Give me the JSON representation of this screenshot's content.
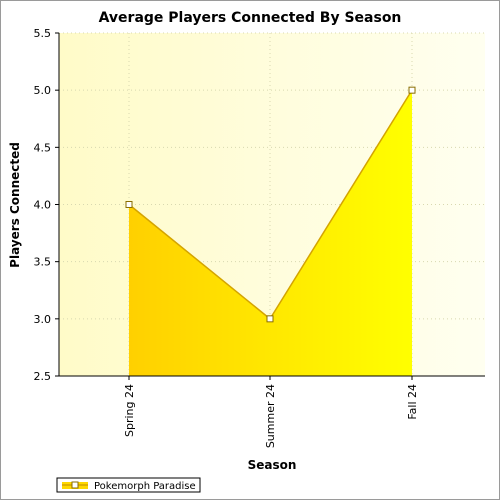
{
  "chart_data": {
    "type": "area",
    "title": "Average Players Connected By Season",
    "xlabel": "Season",
    "ylabel": "Players Connected",
    "categories": [
      "Spring 24",
      "Summer 24",
      "Fall 24"
    ],
    "series": [
      {
        "name": "Pokemorph Paradise",
        "values": [
          4.0,
          3.0,
          5.0
        ]
      }
    ],
    "ylim": [
      2.5,
      5.5
    ],
    "yticks": [
      "2.5",
      "3.0",
      "3.5",
      "4.0",
      "4.5",
      "5.0",
      "5.5"
    ],
    "grid": true,
    "legend_position": "bottom-left",
    "colors": {
      "plot_bg_top": "#ffffcc",
      "area_fill_light": "#ffff00",
      "area_fill_dark": "#ffd200",
      "line": "#d4a400",
      "marker_fill": "#ffffff",
      "marker_stroke": "#8a6d00"
    }
  }
}
